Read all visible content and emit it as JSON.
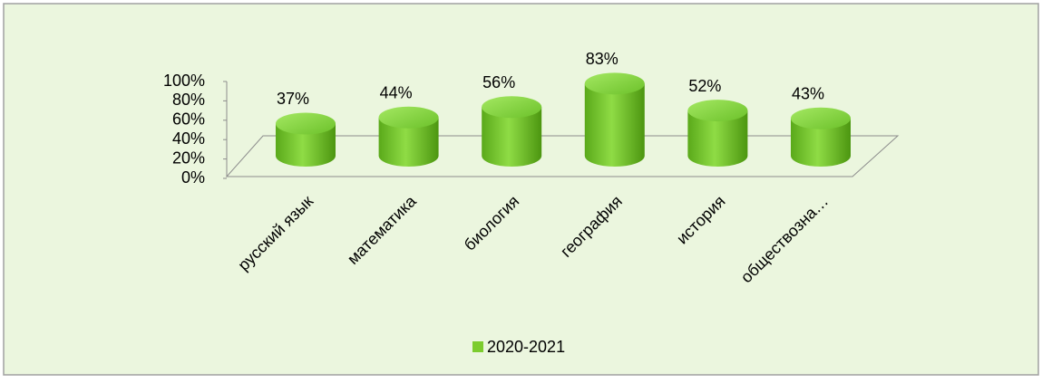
{
  "chart_data": {
    "type": "cylinder",
    "categories": [
      "русский язык",
      "математика",
      "биология",
      "география",
      "история",
      "обществозна…"
    ],
    "series": [
      {
        "name": "2020-2021",
        "color": "#7ccc2e",
        "values": [
          37,
          44,
          56,
          83,
          52,
          43
        ],
        "value_labels": [
          "37%",
          "44%",
          "56%",
          "83%",
          "52%",
          "43%"
        ]
      }
    ],
    "ylim": [
      0,
      100
    ],
    "yticks": [
      {
        "value": 0,
        "label": "0%"
      },
      {
        "value": 20,
        "label": "20%"
      },
      {
        "value": 40,
        "label": "40%"
      },
      {
        "value": 60,
        "label": "60%"
      },
      {
        "value": 80,
        "label": "80%"
      },
      {
        "value": 100,
        "label": "100%"
      }
    ],
    "legend": "bottom"
  }
}
